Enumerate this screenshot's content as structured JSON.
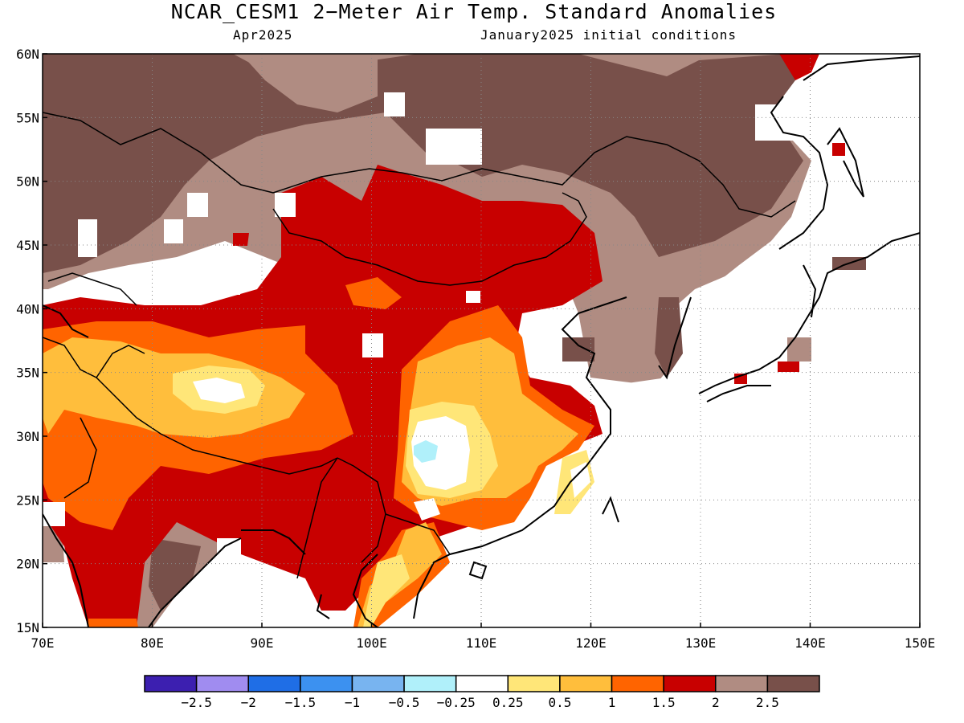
{
  "title": "NCAR_CESM1 2−Meter Air Temp. Standard Anomalies",
  "subtitle_left": "Apr2025",
  "subtitle_right": "January2025 initial conditions",
  "map": {
    "lon_range": [
      70,
      150
    ],
    "lat_range": [
      15,
      60
    ],
    "lon_ticks": [
      "70E",
      "80E",
      "90E",
      "100E",
      "110E",
      "120E",
      "130E",
      "140E",
      "150E"
    ],
    "lat_ticks": [
      "60N",
      "55N",
      "50N",
      "45N",
      "40N",
      "35N",
      "30N",
      "25N",
      "20N",
      "15N"
    ],
    "gridlines": "dotted"
  },
  "colorbar": {
    "colors": [
      "#3c1fb0",
      "#a08cf0",
      "#1f6ee6",
      "#3c91f0",
      "#78b4f0",
      "#b0f0fa",
      "#ffffff",
      "#ffe678",
      "#ffbe3c",
      "#ff6400",
      "#c80000",
      "#b08c82",
      "#78504a"
    ],
    "labels": [
      "−2.5",
      "−2",
      "−1.5",
      "−1",
      "−0.5",
      "−0.25",
      "0.25",
      "0.5",
      "1",
      "1.5",
      "2",
      "2.5"
    ]
  }
}
